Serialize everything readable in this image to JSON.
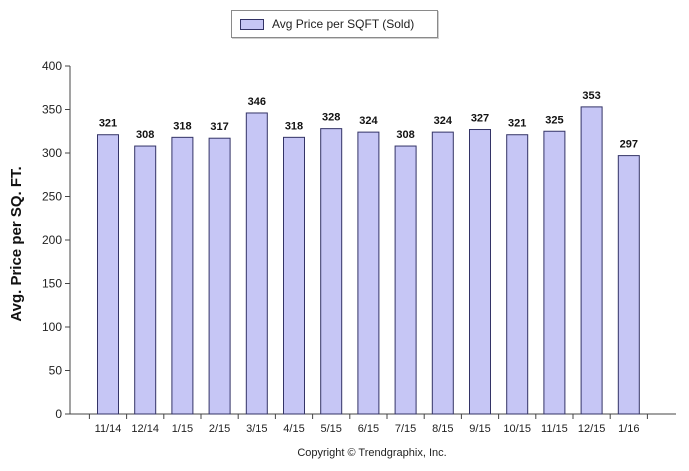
{
  "legend": {
    "label": "Avg Price per SQFT (Sold)"
  },
  "footer": {
    "copyright": "Copyright © Trendgraphix, Inc."
  },
  "chart_data": {
    "type": "bar",
    "categories": [
      "11/14",
      "12/14",
      "1/15",
      "2/15",
      "3/15",
      "4/15",
      "5/15",
      "6/15",
      "7/15",
      "8/15",
      "9/15",
      "10/15",
      "11/15",
      "12/15",
      "1/16"
    ],
    "series": [
      {
        "name": "Avg Price per SQFT (Sold)",
        "values": [
          321,
          308,
          318,
          317,
          346,
          318,
          328,
          324,
          308,
          324,
          327,
          321,
          325,
          353,
          297
        ]
      }
    ],
    "xlabel": "",
    "ylabel": "Avg. Price per SQ. FT.",
    "ylim": [
      0,
      400
    ],
    "yticks": [
      0,
      50,
      100,
      150,
      200,
      250,
      300,
      350,
      400
    ],
    "grid": false,
    "data_labels": true,
    "legend_position": "top",
    "colors": {
      "bar_fill": "#c6c6f5",
      "bar_stroke": "#333366"
    }
  }
}
